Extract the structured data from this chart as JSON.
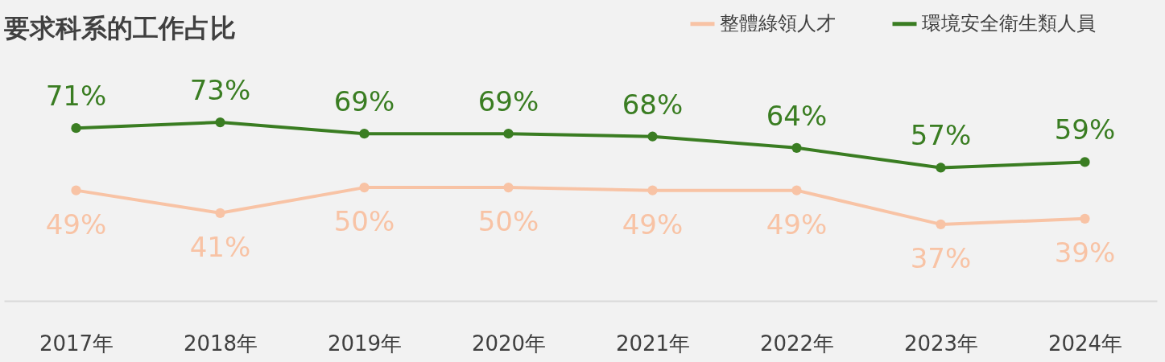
{
  "chart_data": {
    "type": "line",
    "title": "要求科系的工作占比",
    "categories": [
      "2017年",
      "2018年",
      "2019年",
      "2020年",
      "2021年",
      "2022年",
      "2023年",
      "2024年"
    ],
    "series": [
      {
        "name": "整體綠領人才",
        "color": "#f8c3a5",
        "values": [
          49,
          41,
          50,
          50,
          49,
          49,
          37,
          39
        ],
        "value_labels": [
          "49%",
          "41%",
          "50%",
          "50%",
          "49%",
          "49%",
          "37%",
          "39%"
        ]
      },
      {
        "name": "環境安全衛生類人員",
        "color": "#3a7d22",
        "values": [
          71,
          73,
          69,
          69,
          68,
          64,
          57,
          59
        ],
        "value_labels": [
          "71%",
          "73%",
          "69%",
          "69%",
          "68%",
          "64%",
          "57%",
          "59%"
        ]
      }
    ],
    "marker": "circle",
    "line_style": "solid",
    "legend": "top right",
    "grid": false
  }
}
